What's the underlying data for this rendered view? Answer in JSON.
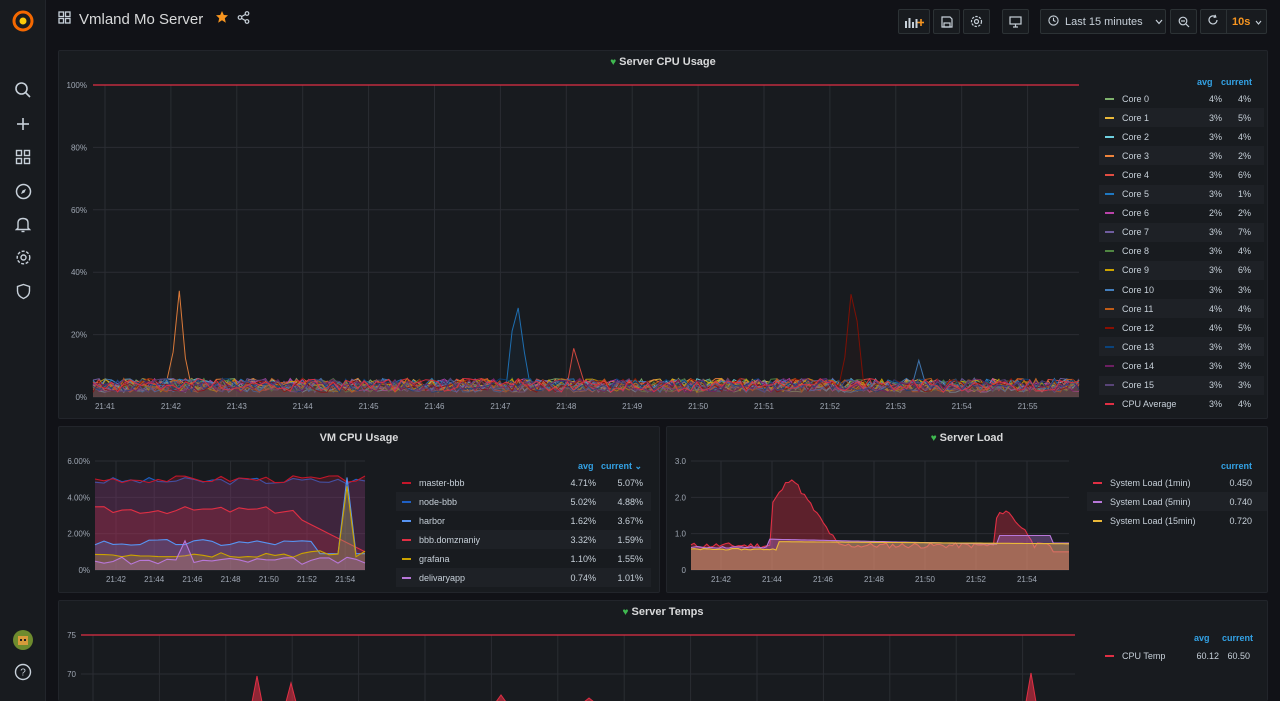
{
  "dashboard": {
    "title": "Vmland Mo Server"
  },
  "toolbar": {
    "time_range": "Last 15 minutes",
    "refresh": "10s"
  },
  "icons": {
    "logo": "grafana-logo",
    "grid": "dashboard-grid-icon",
    "star": "star-icon",
    "share": "share-icon",
    "add_panel": "add-panel-icon",
    "save": "save-icon",
    "settings": "gear-icon",
    "tv": "tv-mode-icon",
    "clock": "clock-icon",
    "zoom_out": "zoom-out-icon",
    "refresh": "refresh-icon"
  },
  "colors": {
    "accent": "#f79520",
    "threshold": "#e02f44",
    "ok": "#3fb950",
    "link": "#33a2e5"
  },
  "panels": {
    "cpu": {
      "title": "Server CPU Usage",
      "avg_label": "avg",
      "current_label": "current",
      "legend": [
        {
          "name": "Core 0",
          "avg": "4%",
          "current": "4%",
          "color": "#7eb26d"
        },
        {
          "name": "Core 1",
          "avg": "3%",
          "current": "5%",
          "color": "#eab839"
        },
        {
          "name": "Core 2",
          "avg": "3%",
          "current": "4%",
          "color": "#6ed0e0"
        },
        {
          "name": "Core 3",
          "avg": "3%",
          "current": "2%",
          "color": "#ef843c"
        },
        {
          "name": "Core 4",
          "avg": "3%",
          "current": "6%",
          "color": "#e24d42"
        },
        {
          "name": "Core 5",
          "avg": "3%",
          "current": "1%",
          "color": "#1f78c1"
        },
        {
          "name": "Core 6",
          "avg": "2%",
          "current": "2%",
          "color": "#ba43a9"
        },
        {
          "name": "Core 7",
          "avg": "3%",
          "current": "7%",
          "color": "#705da0"
        },
        {
          "name": "Core 8",
          "avg": "3%",
          "current": "4%",
          "color": "#508642"
        },
        {
          "name": "Core 9",
          "avg": "3%",
          "current": "6%",
          "color": "#cca300"
        },
        {
          "name": "Core 10",
          "avg": "3%",
          "current": "3%",
          "color": "#447ebc"
        },
        {
          "name": "Core 11",
          "avg": "4%",
          "current": "4%",
          "color": "#c15c17"
        },
        {
          "name": "Core 12",
          "avg": "4%",
          "current": "5%",
          "color": "#890f02"
        },
        {
          "name": "Core 13",
          "avg": "3%",
          "current": "3%",
          "color": "#0a437c"
        },
        {
          "name": "Core 14",
          "avg": "3%",
          "current": "3%",
          "color": "#6d1f62"
        },
        {
          "name": "Core 15",
          "avg": "3%",
          "current": "3%",
          "color": "#584477"
        },
        {
          "name": "CPU Average",
          "avg": "3%",
          "current": "4%",
          "color": "#e02f44"
        }
      ],
      "y_ticks": [
        "0%",
        "20%",
        "40%",
        "60%",
        "80%",
        "100%"
      ],
      "x_ticks": [
        "21:41",
        "21:42",
        "21:43",
        "21:44",
        "21:45",
        "21:46",
        "21:47",
        "21:48",
        "21:49",
        "21:50",
        "21:51",
        "21:52",
        "21:53",
        "21:54",
        "21:55"
      ]
    },
    "vm": {
      "title": "VM CPU Usage",
      "avg_label": "avg",
      "current_label": "current",
      "legend": [
        {
          "name": "master-bbb",
          "avg": "4.71%",
          "current": "5.07%",
          "color": "#c4162a"
        },
        {
          "name": "node-bbb",
          "avg": "5.02%",
          "current": "4.88%",
          "color": "#1f60c4"
        },
        {
          "name": "harbor",
          "avg": "1.62%",
          "current": "3.67%",
          "color": "#5794f2"
        },
        {
          "name": "bbb.domznaniy",
          "avg": "3.32%",
          "current": "1.59%",
          "color": "#e02f44"
        },
        {
          "name": "grafana",
          "avg": "1.10%",
          "current": "1.55%",
          "color": "#cca300"
        },
        {
          "name": "delivaryapp",
          "avg": "0.74%",
          "current": "1.01%",
          "color": "#b877d9"
        }
      ],
      "y_ticks": [
        "0%",
        "2.00%",
        "4.00%",
        "6.00%"
      ],
      "x_ticks": [
        "21:42",
        "21:44",
        "21:46",
        "21:48",
        "21:50",
        "21:52",
        "21:54"
      ]
    },
    "load": {
      "title": "Server Load",
      "current_label": "current",
      "legend": [
        {
          "name": "System Load (1min)",
          "current": "0.450",
          "color": "#e02f44"
        },
        {
          "name": "System Load (5min)",
          "current": "0.740",
          "color": "#b877d9"
        },
        {
          "name": "System Load (15min)",
          "current": "0.720",
          "color": "#eab839"
        }
      ],
      "y_ticks": [
        "0",
        "1.0",
        "2.0",
        "3.0"
      ],
      "x_ticks": [
        "21:42",
        "21:44",
        "21:46",
        "21:48",
        "21:50",
        "21:52",
        "21:54"
      ]
    },
    "temps": {
      "title": "Server Temps",
      "avg_label": "avg",
      "current_label": "current",
      "legend": [
        {
          "name": "CPU Temp",
          "avg": "60.12",
          "current": "60.50",
          "color": "#e02f44"
        }
      ],
      "y_ticks": [
        "70",
        "75"
      ]
    }
  }
}
